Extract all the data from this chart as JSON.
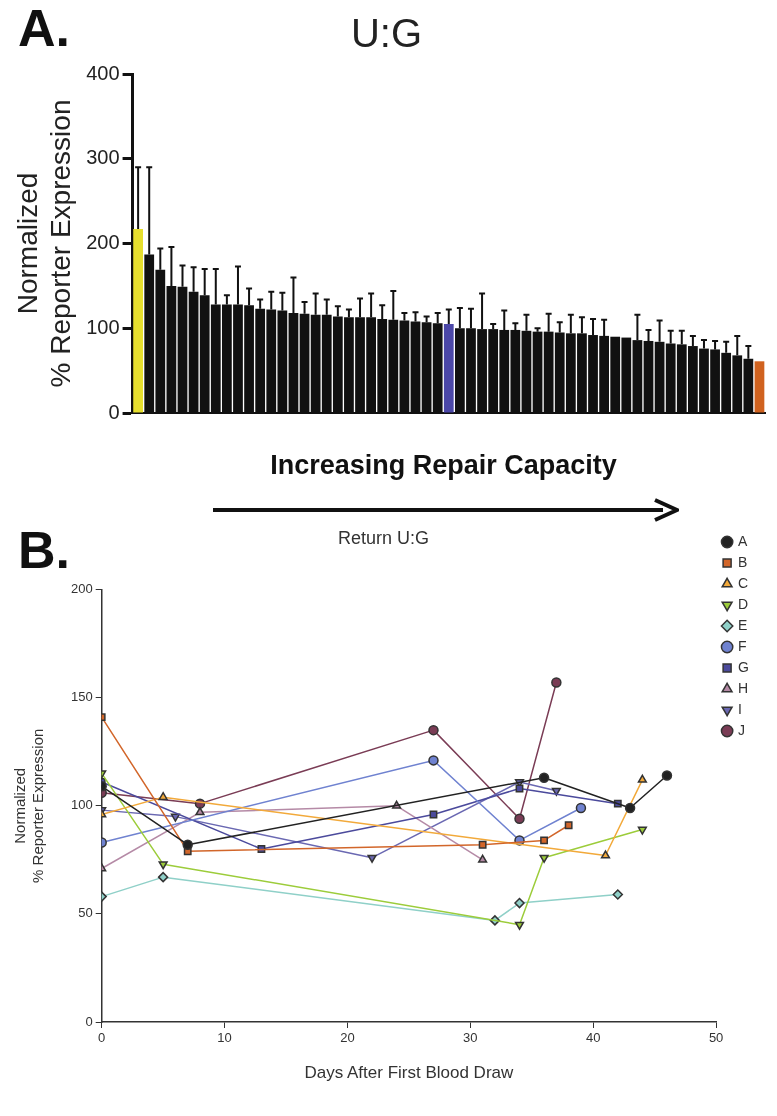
{
  "chart_data": [
    {
      "type": "bar",
      "title": "U:G",
      "ylabel": "Normalized\n% Reporter Expression",
      "xlabel": "Increasing Repair Capacity",
      "annotations": [
        "A."
      ],
      "categories": [
        null,
        null,
        null,
        null,
        null,
        null,
        null,
        null,
        null,
        null,
        null,
        null,
        null,
        null,
        null,
        null,
        null,
        null,
        null,
        null,
        null,
        null,
        null,
        null,
        null,
        null,
        null,
        null,
        null,
        null,
        null,
        null,
        null,
        null,
        null,
        null,
        null,
        null,
        null,
        null,
        null,
        null,
        null,
        null,
        null,
        null,
        null,
        null,
        null,
        null,
        null,
        null,
        null,
        null,
        null,
        null,
        null
      ],
      "values": [
        217,
        187,
        169,
        150,
        149,
        143,
        139,
        128,
        128,
        128,
        127,
        123,
        122,
        121,
        118,
        117,
        116,
        116,
        114,
        113,
        113,
        113,
        111,
        110,
        109,
        108,
        107,
        106,
        105,
        100,
        100,
        99,
        99,
        98,
        98,
        97,
        96,
        96,
        95,
        94,
        94,
        92,
        91,
        90,
        89,
        86,
        85,
        84,
        82,
        81,
        79,
        76,
        75,
        71,
        68,
        64,
        61
      ],
      "errors": [
        [
          217,
          290
        ],
        [
          187,
          290
        ],
        [
          169,
          194
        ],
        [
          150,
          196
        ],
        [
          149,
          174
        ],
        [
          143,
          172
        ],
        [
          139,
          170
        ],
        [
          128,
          170
        ],
        [
          128,
          139
        ],
        [
          128,
          173
        ],
        [
          127,
          147
        ],
        [
          123,
          134
        ],
        [
          122,
          143
        ],
        [
          121,
          142
        ],
        [
          118,
          160
        ],
        [
          117,
          131
        ],
        [
          116,
          141
        ],
        [
          116,
          134
        ],
        [
          114,
          126
        ],
        [
          113,
          122
        ],
        [
          113,
          135
        ],
        [
          113,
          141
        ],
        [
          111,
          127
        ],
        [
          110,
          144
        ],
        [
          109,
          118
        ],
        [
          108,
          119
        ],
        [
          107,
          114
        ],
        [
          106,
          118
        ],
        [
          105,
          122
        ],
        [
          100,
          124
        ],
        [
          100,
          123
        ],
        [
          99,
          141
        ],
        [
          99,
          105
        ],
        [
          98,
          121
        ],
        [
          98,
          106
        ],
        [
          97,
          116
        ],
        [
          96,
          100
        ],
        [
          96,
          117
        ],
        [
          95,
          107
        ],
        [
          94,
          116
        ],
        [
          94,
          113
        ],
        [
          92,
          111
        ],
        [
          91,
          110
        ],
        null,
        null,
        [
          86,
          116
        ],
        [
          85,
          98
        ],
        [
          84,
          109
        ],
        [
          82,
          97
        ],
        [
          81,
          97
        ],
        [
          79,
          91
        ],
        [
          76,
          86
        ],
        [
          75,
          85
        ],
        [
          71,
          84
        ],
        [
          68,
          91
        ],
        [
          64,
          79
        ],
        null
      ],
      "colors": [
        "#e6df2e",
        "#111111",
        "#111111",
        "#111111",
        "#111111",
        "#111111",
        "#111111",
        "#111111",
        "#111111",
        "#111111",
        "#111111",
        "#111111",
        "#111111",
        "#111111",
        "#111111",
        "#111111",
        "#111111",
        "#111111",
        "#111111",
        "#111111",
        "#111111",
        "#111111",
        "#111111",
        "#111111",
        "#111111",
        "#111111",
        "#111111",
        "#111111",
        "#4b47a8",
        "#111111",
        "#111111",
        "#111111",
        "#111111",
        "#111111",
        "#111111",
        "#111111",
        "#111111",
        "#111111",
        "#111111",
        "#111111",
        "#111111",
        "#111111",
        "#111111",
        "#111111",
        "#111111",
        "#111111",
        "#111111",
        "#111111",
        "#111111",
        "#111111",
        "#111111",
        "#111111",
        "#111111",
        "#111111",
        "#111111",
        "#111111",
        "#d0621f"
      ],
      "ylim": [
        0,
        400
      ],
      "yticks": [
        0,
        100,
        200,
        300,
        400
      ],
      "grid": false,
      "tick_labels": "y",
      "legend": false
    },
    {
      "type": "line",
      "title": "Return U:G",
      "ylabel": "Normalized\n% Reporter Expression",
      "xlabel": "Days After First Blood Draw",
      "annotations": [
        "B."
      ],
      "xlim": [
        0,
        50
      ],
      "xticks": [
        0,
        10,
        20,
        30,
        40,
        50
      ],
      "ylim": [
        0,
        200
      ],
      "yticks": [
        0,
        50,
        100,
        150,
        200
      ],
      "grid": false,
      "legend": "top right",
      "series": [
        {
          "name": "A",
          "color": "#222222",
          "marker": "circle",
          "x": [
            0,
            7,
            36,
            43,
            46
          ],
          "values": [
            109,
            82,
            113,
            99,
            114
          ]
        },
        {
          "name": "B",
          "color": "#d2662a",
          "marker": "square",
          "x": [
            0,
            7,
            31,
            36,
            38
          ],
          "values": [
            141,
            79,
            82,
            84,
            91
          ]
        },
        {
          "name": "C",
          "color": "#f2a93a",
          "marker": "triangle",
          "x": [
            0,
            5,
            41,
            44
          ],
          "values": [
            96,
            104,
            77,
            112
          ]
        },
        {
          "name": "D",
          "color": "#9ccc3a",
          "marker": "triangle-down",
          "x": [
            0,
            5,
            34,
            36,
            44
          ],
          "values": [
            115,
            73,
            45,
            76,
            89
          ]
        },
        {
          "name": "E",
          "color": "#8fd0c8",
          "marker": "diamond",
          "x": [
            0,
            5,
            32,
            34,
            42
          ],
          "values": [
            58,
            67,
            47,
            55,
            59
          ]
        },
        {
          "name": "F",
          "color": "#6f82d0",
          "marker": "circle",
          "x": [
            0,
            27,
            34,
            39
          ],
          "values": [
            83,
            121,
            84,
            99
          ]
        },
        {
          "name": "G",
          "color": "#4b4a9c",
          "marker": "square",
          "x": [
            0,
            13,
            27,
            34,
            42
          ],
          "values": [
            111,
            80,
            96,
            108,
            101
          ]
        },
        {
          "name": "H",
          "color": "#b58aa6",
          "marker": "triangle",
          "x": [
            0,
            8,
            24,
            31
          ],
          "values": [
            71,
            97,
            100,
            75
          ]
        },
        {
          "name": "I",
          "color": "#6a68b2",
          "marker": "triangle-down",
          "x": [
            0,
            6,
            22,
            34,
            37
          ],
          "values": [
            98,
            95,
            76,
            111,
            107
          ]
        },
        {
          "name": "J",
          "color": "#7a3c55",
          "marker": "circle",
          "x": [
            0,
            8,
            27,
            34,
            37
          ],
          "values": [
            106,
            101,
            135,
            94,
            157
          ]
        }
      ]
    }
  ]
}
